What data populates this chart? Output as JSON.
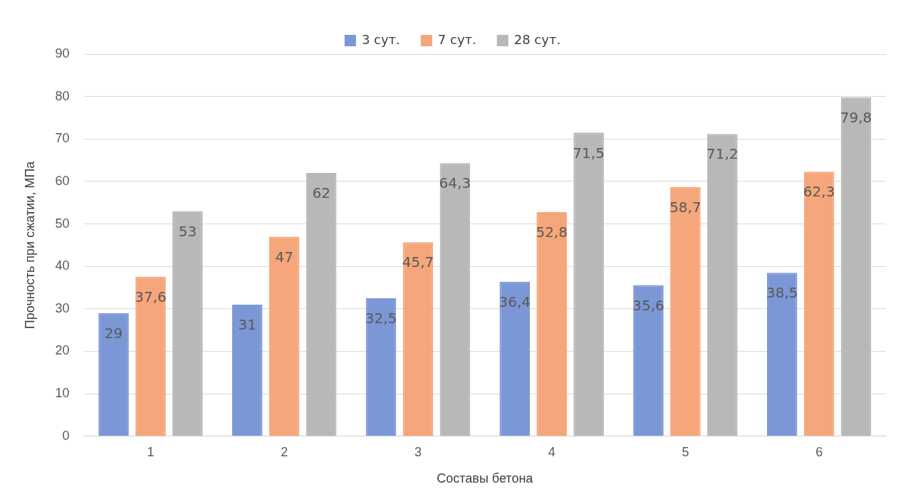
{
  "chart_data": {
    "type": "bar",
    "xlabel": "Составы бетона",
    "ylabel": "Прочность при сжатии, МПа",
    "categories": [
      "1",
      "2",
      "3",
      "4",
      "5",
      "6"
    ],
    "series": [
      {
        "name": "3 сут.",
        "color": "#7b97d6",
        "values": [
          29,
          31,
          32.5,
          36.4,
          35.6,
          38.5
        ],
        "value_labels": [
          "29",
          "31",
          "32,5",
          "36,4",
          "35,6",
          "38,5"
        ]
      },
      {
        "name": "7 сут.",
        "color": "#f5a67a",
        "values": [
          37.6,
          47,
          45.7,
          52.8,
          58.7,
          62.3
        ],
        "value_labels": [
          "37,6",
          "47",
          "45,7",
          "52,8",
          "58,7",
          "62,3"
        ]
      },
      {
        "name": "28 сут.",
        "color": "#b8b8b8",
        "values": [
          53,
          62,
          64.3,
          71.5,
          71.2,
          79.8
        ],
        "value_labels": [
          "53",
          "62",
          "64,3",
          "71,5",
          "71,2",
          "79,8"
        ]
      }
    ],
    "ylim": [
      0,
      90
    ],
    "yticks": [
      0,
      10,
      20,
      30,
      40,
      50,
      60,
      70,
      80,
      90
    ],
    "grid": "y",
    "legend": "top"
  }
}
